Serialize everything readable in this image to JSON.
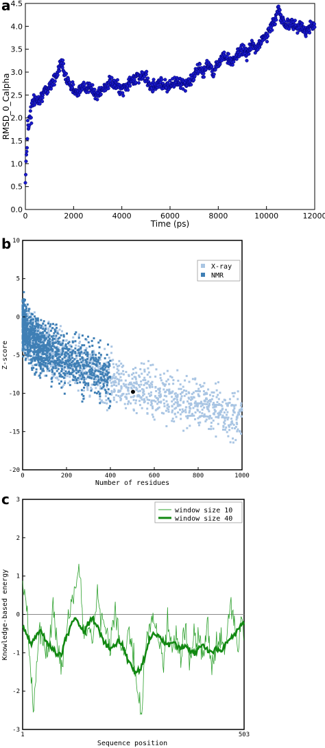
{
  "colors": {
    "rmsd_marker": "#1a1acc",
    "rmsd_edge": "#000066",
    "xray": "#a9c5e3",
    "nmr": "#3f7fb5",
    "query_point": "#000000",
    "window10": "#2ca02c",
    "window40": "#118811",
    "zero_line": "#888888"
  },
  "chart_data": [
    {
      "panel": "a",
      "type": "scatter",
      "title": "",
      "xlabel": "Time (ps)",
      "ylabel": "RMSD_0_Calpha",
      "xlim": [
        0,
        12000
      ],
      "ylim": [
        0,
        4.5
      ],
      "xticks": [
        "0",
        "2000",
        "4000",
        "6000",
        "8000",
        "10000",
        "12000"
      ],
      "yticks": [
        "0.0",
        "0.5",
        "1.0",
        "1.5",
        "2.0",
        "2.5",
        "3.0",
        "3.5",
        "4.0",
        "4.5"
      ],
      "x": [
        0,
        50,
        100,
        200,
        300,
        400,
        500,
        700,
        900,
        1100,
        1300,
        1450,
        1500,
        1600,
        1800,
        2000,
        2200,
        2500,
        2800,
        3000,
        3200,
        3500,
        3800,
        4000,
        4200,
        4400,
        4600,
        4800,
        5000,
        5200,
        5400,
        5600,
        5800,
        6000,
        6200,
        6400,
        6600,
        6800,
        7000,
        7200,
        7400,
        7600,
        7800,
        8000,
        8200,
        8400,
        8600,
        8800,
        9000,
        9200,
        9400,
        9600,
        9800,
        10000,
        10200,
        10400,
        10500,
        10600,
        10800,
        11000,
        11200,
        11400,
        11600,
        11800,
        12000
      ],
      "y": [
        0.7,
        1.3,
        1.8,
        2.1,
        2.3,
        2.4,
        2.4,
        2.5,
        2.6,
        2.8,
        2.9,
        3.2,
        3.3,
        3.0,
        2.8,
        2.6,
        2.6,
        2.7,
        2.6,
        2.5,
        2.6,
        2.8,
        2.7,
        2.6,
        2.7,
        2.8,
        2.9,
        2.9,
        2.9,
        2.7,
        2.7,
        2.8,
        2.7,
        2.7,
        2.8,
        2.8,
        2.7,
        2.8,
        2.9,
        3.1,
        3.0,
        3.2,
        3.0,
        3.2,
        3.4,
        3.3,
        3.2,
        3.4,
        3.5,
        3.4,
        3.6,
        3.5,
        3.7,
        3.8,
        4.0,
        4.2,
        4.4,
        4.2,
        4.0,
        4.1,
        4.0,
        4.0,
        3.9,
        4.0,
        4.0
      ]
    },
    {
      "panel": "b",
      "type": "scatter",
      "title": "",
      "xlabel": "Number of residues",
      "ylabel": "Z-score",
      "xlim": [
        0,
        1000
      ],
      "ylim": [
        -20,
        10
      ],
      "xticks": [
        "0",
        "200",
        "400",
        "600",
        "800",
        "1000"
      ],
      "yticks": [
        "10",
        "5",
        "0",
        "-5",
        "-10",
        "-15",
        "-20"
      ],
      "legend": [
        "X-ray",
        "NMR"
      ],
      "legend_position": "top-right",
      "series": [
        {
          "name": "X-ray",
          "x": [
            20,
            50,
            100,
            150,
            200,
            250,
            300,
            350,
            400,
            450,
            500,
            550,
            600,
            650,
            700,
            750,
            800,
            850,
            900,
            950,
            1000
          ],
          "y": [
            -2,
            -3,
            -4,
            -4.8,
            -5.5,
            -6.2,
            -6.8,
            -7.5,
            -8,
            -8.6,
            -9.2,
            -9.6,
            -10,
            -10.4,
            -10.8,
            -11.2,
            -11.5,
            -12,
            -12.4,
            -12.8,
            -13
          ]
        },
        {
          "name": "NMR",
          "x": [
            5,
            20,
            40,
            60,
            80,
            100,
            120,
            140,
            160,
            180,
            200,
            250,
            300,
            350,
            400
          ],
          "y": [
            -1,
            -2,
            -3,
            -3.5,
            -4,
            -4.3,
            -4.6,
            -4.9,
            -5.1,
            -5.3,
            -5.6,
            -6.1,
            -6.6,
            -7.2,
            -7.8
          ]
        }
      ],
      "query": {
        "x": 503,
        "y": -9.8
      }
    },
    {
      "panel": "c",
      "type": "line",
      "title": "",
      "xlabel": "Sequence position",
      "ylabel": "Knowledge-based energy",
      "xlim": [
        1,
        503
      ],
      "ylim": [
        -3,
        3
      ],
      "xticks": [
        "1",
        "503"
      ],
      "yticks": [
        "3",
        "2",
        "1",
        "0",
        "-1",
        "-2",
        "-3"
      ],
      "legend_position": "top-right",
      "series": [
        {
          "name": "window size 10",
          "x": [
            1,
            10,
            20,
            25,
            30,
            40,
            50,
            60,
            70,
            80,
            90,
            100,
            110,
            120,
            130,
            140,
            150,
            160,
            170,
            180,
            190,
            200,
            210,
            220,
            230,
            240,
            250,
            260,
            270,
            280,
            290,
            300,
            310,
            320,
            330,
            340,
            350,
            360,
            370,
            380,
            390,
            400,
            410,
            420,
            430,
            440,
            450,
            460,
            470,
            480,
            490,
            500,
            503
          ],
          "y": [
            0.9,
            0.3,
            -1.5,
            -2.6,
            -1.8,
            -0.3,
            -0.8,
            -1.0,
            0.3,
            -0.8,
            -1.4,
            -0.5,
            0.2,
            0.9,
            1.2,
            -0.5,
            -0.3,
            -0.8,
            0.5,
            -0.2,
            -0.6,
            -0.9,
            0.1,
            -0.7,
            -1.2,
            -0.4,
            -0.9,
            -1.7,
            -2.7,
            -0.8,
            -0.3,
            -0.1,
            -0.6,
            -1.2,
            -0.2,
            -0.9,
            -0.5,
            -1.1,
            -0.3,
            -1.3,
            -0.6,
            -0.5,
            -1.2,
            -0.2,
            -1.4,
            -0.8,
            -0.5,
            -1.0,
            0.3,
            -0.2,
            -0.9,
            0.1,
            -0.8
          ]
        },
        {
          "name": "window size 40",
          "x": [
            1,
            10,
            20,
            30,
            40,
            50,
            60,
            70,
            80,
            90,
            100,
            110,
            120,
            130,
            140,
            150,
            160,
            170,
            180,
            190,
            200,
            210,
            220,
            230,
            240,
            250,
            260,
            270,
            280,
            290,
            300,
            310,
            320,
            330,
            340,
            350,
            360,
            370,
            380,
            390,
            400,
            410,
            420,
            430,
            440,
            450,
            460,
            470,
            480,
            490,
            500,
            503
          ],
          "y": [
            -0.3,
            -0.5,
            -0.8,
            -0.6,
            -0.4,
            -0.6,
            -0.8,
            -0.9,
            -1.1,
            -1.0,
            -0.6,
            -0.3,
            -0.1,
            -0.3,
            -0.5,
            -0.2,
            -0.1,
            -0.3,
            -0.6,
            -0.8,
            -0.9,
            -0.8,
            -0.7,
            -0.9,
            -1.2,
            -1.4,
            -1.5,
            -1.4,
            -1.0,
            -0.6,
            -0.5,
            -0.6,
            -0.7,
            -0.8,
            -0.7,
            -0.8,
            -0.9,
            -0.8,
            -0.9,
            -1.0,
            -0.9,
            -0.8,
            -0.9,
            -1.0,
            -0.9,
            -1.0,
            -0.8,
            -0.6,
            -0.5,
            -0.4,
            -0.2,
            -0.3
          ]
        }
      ]
    }
  ],
  "panel_labels": {
    "a": "a",
    "b": "b",
    "c": "c"
  }
}
